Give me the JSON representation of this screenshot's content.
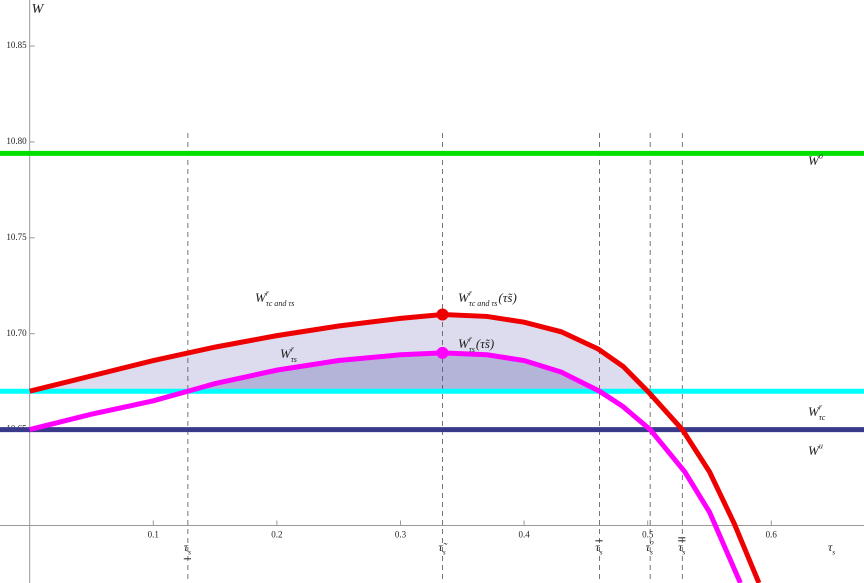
{
  "chart_data": {
    "type": "line",
    "xlim": [
      -0.024,
      0.675
    ],
    "ylim": [
      10.57,
      10.874
    ],
    "axes_origin": [
      0,
      10.6
    ],
    "xticks": [
      0.1,
      0.2,
      0.3,
      0.4,
      0.5,
      0.6
    ],
    "yticks": [
      10.65,
      {
        "value": 10.7,
        "label": "10.70"
      },
      10.75,
      {
        "value": 10.8,
        "label": "10.80"
      },
      10.85
    ],
    "x_label": {
      "base": "τ",
      "sub": "s"
    },
    "y_label": {
      "base": "W"
    },
    "hlines": [
      {
        "y": 10.794,
        "color": "#00e000",
        "label": {
          "base": "W",
          "sup": "o"
        }
      },
      {
        "y": 10.67,
        "color": "#00ffff",
        "label": {
          "base": "W",
          "sup": "r",
          "sub": "τc"
        }
      },
      {
        "y": 10.65,
        "color": "#3a3a8c",
        "label": {
          "base": "W",
          "sup": "u"
        }
      }
    ],
    "vlines": [
      {
        "x": 0.128,
        "label": {
          "base": "τ",
          "sub": "s",
          "accent": "underline"
        }
      },
      {
        "x": 0.334,
        "label": {
          "base": "τ̃",
          "sub": "s"
        }
      },
      {
        "x": 0.461,
        "label": {
          "base": "τ",
          "sub": "s",
          "accent": "overline"
        }
      },
      {
        "x": 0.502,
        "label": {
          "base": "τ",
          "sub": "s",
          "sup": "o"
        }
      },
      {
        "x": 0.528,
        "label": {
          "base": "τ",
          "sub": "s",
          "accent": "double-overline"
        }
      }
    ],
    "series": [
      {
        "color": "#ee0000",
        "fill_color": "#dcdcee",
        "fill_base": 1,
        "label": {
          "base": "W",
          "sup": "r",
          "sub": "τc and τs"
        },
        "x": [
          0,
          0.05,
          0.1,
          0.15,
          0.2,
          0.25,
          0.3,
          0.334,
          0.37,
          0.4,
          0.43,
          0.46,
          0.48,
          0.5,
          0.528,
          0.55,
          0.57,
          0.59
        ],
        "values": [
          10.67,
          10.678,
          10.686,
          10.693,
          10.699,
          10.704,
          10.708,
          10.71,
          10.709,
          10.706,
          10.701,
          10.692,
          10.683,
          10.67,
          10.65,
          10.628,
          10.601,
          10.57
        ],
        "marker": {
          "x": 0.334,
          "y": 10.71,
          "label": {
            "base": "W",
            "sup": "r",
            "sub": "τc and τs",
            "after": "(τ̃s)"
          }
        }
      },
      {
        "color": "#ff00ff",
        "fill_color": "#b4b4d8",
        "fill_base": 1,
        "label": {
          "base": "W",
          "sup": "r",
          "sub": "τs"
        },
        "x": [
          0,
          0.05,
          0.1,
          0.128,
          0.15,
          0.2,
          0.25,
          0.3,
          0.334,
          0.37,
          0.4,
          0.43,
          0.461,
          0.48,
          0.502,
          0.53,
          0.55,
          0.575
        ],
        "values": [
          10.65,
          10.658,
          10.665,
          10.67,
          10.674,
          10.681,
          10.686,
          10.689,
          10.69,
          10.689,
          10.686,
          10.68,
          10.67,
          10.662,
          10.65,
          10.628,
          10.607,
          10.57
        ],
        "marker": {
          "x": 0.334,
          "y": 10.69,
          "label": {
            "base": "W",
            "sup": "r",
            "sub": "τs",
            "after": "(τ̃s)"
          }
        }
      }
    ]
  }
}
